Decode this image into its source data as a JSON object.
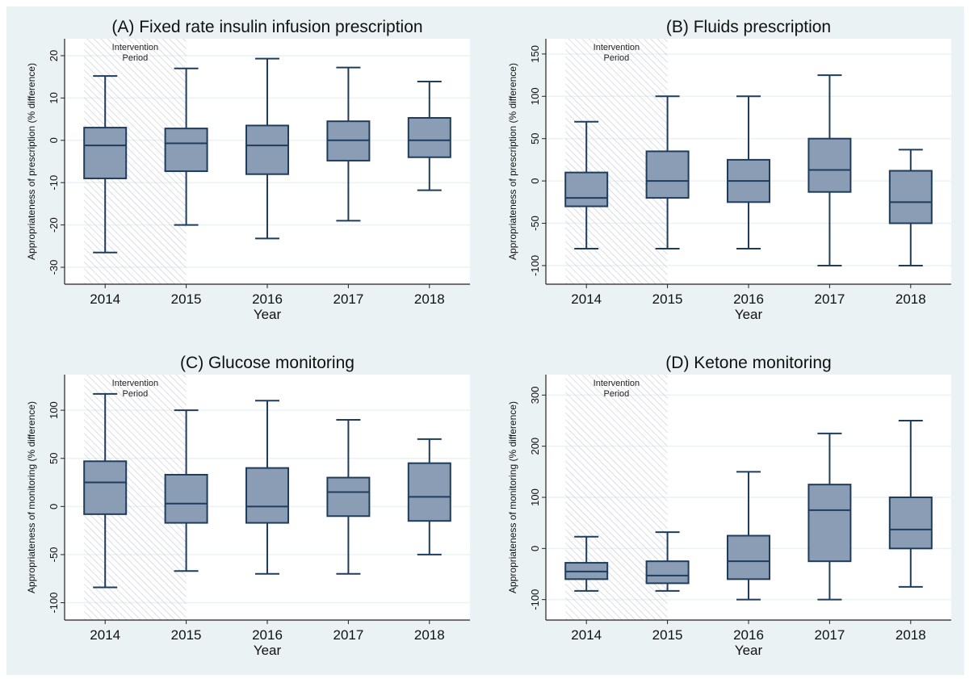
{
  "figure": {
    "background": "#eaf2f3",
    "plot_background": "#ffffff",
    "box_fill": "#8a9db5",
    "line_color": "#1e3d5e"
  },
  "chart_data": [
    {
      "type": "box",
      "title": "(A) Fixed rate insulin infusion prescription",
      "xlabel": "Year",
      "ylabel": "Appropriateness of prescription (% difference)",
      "categories": [
        "2014",
        "2015",
        "2016",
        "2017",
        "2018"
      ],
      "ylim": [
        -34,
        24
      ],
      "yticks": [
        -30,
        -20,
        -10,
        0,
        10,
        20
      ],
      "grid": true,
      "shaded_region": {
        "label": "Intervention\nPeriod",
        "from": "2014",
        "to": "2015"
      },
      "boxes": [
        {
          "x": "2014",
          "min": -26.5,
          "q1": -9,
          "median": -1.2,
          "q3": 3,
          "max": 15.2
        },
        {
          "x": "2015",
          "min": -20,
          "q1": -7.3,
          "median": -0.7,
          "q3": 2.8,
          "max": 17
        },
        {
          "x": "2016",
          "min": -23.2,
          "q1": -8,
          "median": -1.2,
          "q3": 3.5,
          "max": 19.3
        },
        {
          "x": "2017",
          "min": -19,
          "q1": -4.8,
          "median": 0,
          "q3": 4.5,
          "max": 17.2
        },
        {
          "x": "2018",
          "min": -11.8,
          "q1": -4,
          "median": 0,
          "q3": 5.3,
          "max": 13.9
        }
      ]
    },
    {
      "type": "box",
      "title": "(B) Fluids prescription",
      "xlabel": "Year",
      "ylabel": "Appropriateness of prescription (% difference)",
      "categories": [
        "2014",
        "2015",
        "2016",
        "2017",
        "2018"
      ],
      "ylim": [
        -122,
        168
      ],
      "yticks": [
        -100,
        -50,
        0,
        50,
        100,
        150
      ],
      "grid": true,
      "shaded_region": {
        "label": "Intervention\nPeriod",
        "from": "2014",
        "to": "2015"
      },
      "boxes": [
        {
          "x": "2014",
          "min": -80,
          "q1": -30,
          "median": -20,
          "q3": 10,
          "max": 70
        },
        {
          "x": "2015",
          "min": -80,
          "q1": -20,
          "median": 0,
          "q3": 35,
          "max": 100
        },
        {
          "x": "2016",
          "min": -80,
          "q1": -25,
          "median": 0,
          "q3": 25,
          "max": 100
        },
        {
          "x": "2017",
          "min": -100,
          "q1": -13,
          "median": 13,
          "q3": 50,
          "max": 125
        },
        {
          "x": "2018",
          "min": -100,
          "q1": -50,
          "median": -25,
          "q3": 12,
          "max": 37
        }
      ]
    },
    {
      "type": "box",
      "title": "(C) Glucose monitoring",
      "xlabel": "Year",
      "ylabel": "Appropriateness of monitoring (% difference)",
      "categories": [
        "2014",
        "2015",
        "2016",
        "2017",
        "2018"
      ],
      "ylim": [
        -118,
        137
      ],
      "yticks": [
        -100,
        -50,
        0,
        50,
        100
      ],
      "grid": true,
      "shaded_region": {
        "label": "Intervention\nPeriod",
        "from": "2014",
        "to": "2015"
      },
      "boxes": [
        {
          "x": "2014",
          "min": -84,
          "q1": -8,
          "median": 25,
          "q3": 47,
          "max": 117
        },
        {
          "x": "2015",
          "min": -67,
          "q1": -17,
          "median": 3,
          "q3": 33,
          "max": 100
        },
        {
          "x": "2016",
          "min": -70,
          "q1": -17,
          "median": 0,
          "q3": 40,
          "max": 110
        },
        {
          "x": "2017",
          "min": -70,
          "q1": -10,
          "median": 15,
          "q3": 30,
          "max": 90
        },
        {
          "x": "2018",
          "min": -50,
          "q1": -15,
          "median": 10,
          "q3": 45,
          "max": 70
        }
      ]
    },
    {
      "type": "box",
      "title": "(D) Ketone monitoring",
      "xlabel": "Year",
      "ylabel": "Appropriateness of monitoring (% difference)",
      "categories": [
        "2014",
        "2015",
        "2016",
        "2017",
        "2018"
      ],
      "ylim": [
        -140,
        340
      ],
      "yticks": [
        -100,
        0,
        100,
        200,
        300
      ],
      "grid": true,
      "shaded_region": {
        "label": "Intervention\nPeriod",
        "from": "2014",
        "to": "2015"
      },
      "boxes": [
        {
          "x": "2014",
          "min": -83,
          "q1": -60,
          "median": -45,
          "q3": -28,
          "max": 23
        },
        {
          "x": "2015",
          "min": -83,
          "q1": -68,
          "median": -53,
          "q3": -25,
          "max": 32
        },
        {
          "x": "2016",
          "min": -100,
          "q1": -60,
          "median": -25,
          "q3": 25,
          "max": 150
        },
        {
          "x": "2017",
          "min": -100,
          "q1": -25,
          "median": 75,
          "q3": 125,
          "max": 225
        },
        {
          "x": "2018",
          "min": -75,
          "q1": 0,
          "median": 37,
          "q3": 100,
          "max": 250
        }
      ]
    }
  ]
}
